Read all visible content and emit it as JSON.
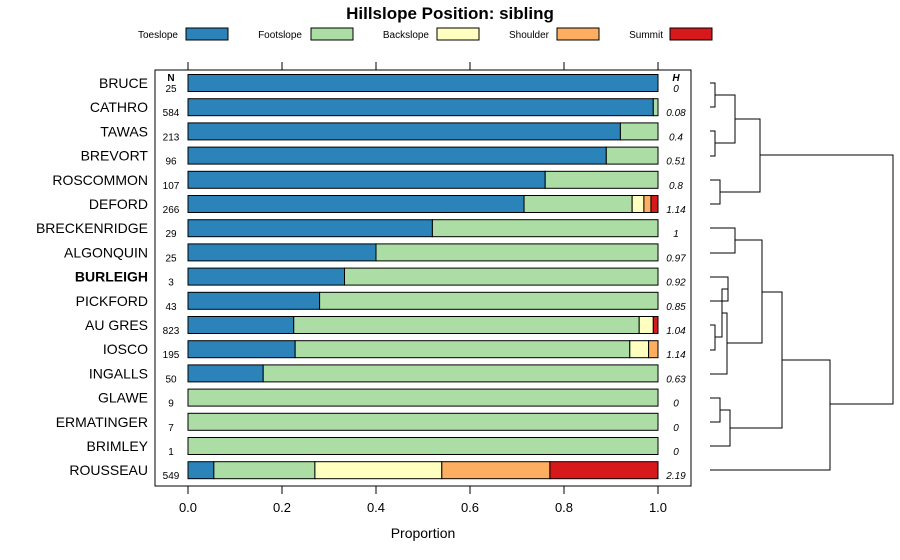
{
  "chart_data": {
    "type": "bar",
    "orientation": "horizontal-stacked",
    "title": "Hillslope Position: sibling",
    "xlabel": "Proportion",
    "xlim": [
      0,
      1
    ],
    "xticks": [
      "0.0",
      "0.2",
      "0.4",
      "0.6",
      "0.8",
      "1.0"
    ],
    "n_header": "N",
    "h_header": "H",
    "highlight": "BURLEIGH",
    "series": [
      {
        "name": "Toeslope",
        "color": "#2b83ba"
      },
      {
        "name": "Footslope",
        "color": "#abdda4"
      },
      {
        "name": "Backslope",
        "color": "#ffffbf"
      },
      {
        "name": "Shoulder",
        "color": "#fdae61"
      },
      {
        "name": "Summit",
        "color": "#d7191c"
      }
    ],
    "rows": [
      {
        "label": "BRUCE",
        "n": "25",
        "h": "0",
        "values": [
          1.0,
          0,
          0,
          0,
          0
        ]
      },
      {
        "label": "CATHRO",
        "n": "584",
        "h": "0.08",
        "values": [
          0.99,
          0.01,
          0,
          0,
          0
        ]
      },
      {
        "label": "TAWAS",
        "n": "213",
        "h": "0.4",
        "values": [
          0.92,
          0.08,
          0,
          0,
          0
        ]
      },
      {
        "label": "BREVORT",
        "n": "96",
        "h": "0.51",
        "values": [
          0.89,
          0.11,
          0,
          0,
          0
        ]
      },
      {
        "label": "ROSCOMMON",
        "n": "107",
        "h": "0.8",
        "values": [
          0.76,
          0.24,
          0,
          0,
          0
        ]
      },
      {
        "label": "DEFORD",
        "n": "266",
        "h": "1.14",
        "values": [
          0.715,
          0.23,
          0.025,
          0.015,
          0.015
        ]
      },
      {
        "label": "BRECKENRIDGE",
        "n": "29",
        "h": "1",
        "values": [
          0.52,
          0.48,
          0,
          0,
          0
        ]
      },
      {
        "label": "ALGONQUIN",
        "n": "25",
        "h": "0.97",
        "values": [
          0.4,
          0.6,
          0,
          0,
          0
        ]
      },
      {
        "label": "BURLEIGH",
        "n": "3",
        "h": "0.92",
        "values": [
          0.333,
          0.667,
          0,
          0,
          0
        ]
      },
      {
        "label": "PICKFORD",
        "n": "43",
        "h": "0.85",
        "values": [
          0.28,
          0.72,
          0,
          0,
          0
        ]
      },
      {
        "label": "AU GRES",
        "n": "823",
        "h": "1.04",
        "values": [
          0.225,
          0.735,
          0.03,
          0,
          0.01
        ]
      },
      {
        "label": "IOSCO",
        "n": "195",
        "h": "1.14",
        "values": [
          0.228,
          0.712,
          0.04,
          0.02,
          0
        ]
      },
      {
        "label": "INGALLS",
        "n": "50",
        "h": "0.63",
        "values": [
          0.16,
          0.84,
          0,
          0,
          0
        ]
      },
      {
        "label": "GLAWE",
        "n": "9",
        "h": "0",
        "values": [
          0,
          1.0,
          0,
          0,
          0
        ]
      },
      {
        "label": "ERMATINGER",
        "n": "7",
        "h": "0",
        "values": [
          0,
          1.0,
          0,
          0,
          0
        ]
      },
      {
        "label": "BRIMLEY",
        "n": "1",
        "h": "0",
        "values": [
          0,
          1.0,
          0,
          0,
          0
        ]
      },
      {
        "label": "ROUSSEAU",
        "n": "549",
        "h": "2.19",
        "values": [
          0.055,
          0.215,
          0.27,
          0.23,
          0.23
        ]
      }
    ]
  }
}
